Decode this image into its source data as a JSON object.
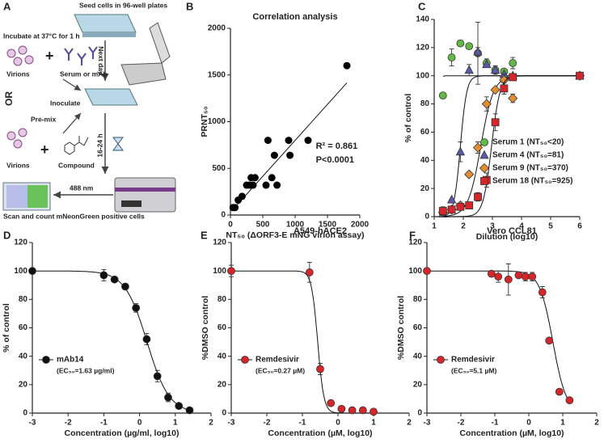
{
  "panel_a": {
    "label": "A",
    "texts": {
      "seed": "Seed cells in 96-well plates",
      "next_day": "Next day",
      "incubate": "Incubate at 37°C for 1 h",
      "virions_1": "Virions",
      "serum": "Serum or mAb",
      "or": "OR",
      "inoculate": "Inoculate",
      "premix": "Pre-mix",
      "virions_2": "Virions",
      "compound": "Compound",
      "hours": "16-24 h",
      "nm": "488 nm",
      "scan": "Scan and count mNeonGreen positive cells"
    }
  },
  "chart_data": [
    {
      "type": "scatter",
      "label": "B",
      "title": "Correlation analysis",
      "xlabel": "NT₅₀ (ΔORF3-E mNG virion assay)",
      "ylabel": "PRNT₅₀",
      "color": "#000000",
      "x": [
        40,
        70,
        120,
        180,
        250,
        300,
        320,
        350,
        380,
        550,
        580,
        640,
        680,
        720,
        900,
        920,
        1200,
        1800
      ],
      "values": [
        80,
        80,
        160,
        200,
        320,
        320,
        400,
        320,
        400,
        320,
        800,
        400,
        640,
        320,
        800,
        640,
        800,
        1600
      ],
      "fit": {
        "slope": 0.77,
        "intercept": 30
      },
      "annotations": [
        "R² = 0.861",
        "P<0.0001"
      ],
      "xlim": [
        0,
        2000
      ],
      "xticks": [
        0,
        500,
        1000,
        1500,
        2000
      ],
      "ylim": [
        0,
        2000
      ],
      "yticks": [
        0,
        500,
        1000,
        1500,
        2000
      ]
    },
    {
      "type": "dose_response",
      "label": "C",
      "xlabel": "Dilution (log10)",
      "ylabel": "% of control",
      "legend": "lower right",
      "x": [
        1.3,
        1.6,
        1.9,
        2.2,
        2.5,
        2.8,
        3.1,
        3.4,
        3.7,
        6
      ],
      "series": [
        {
          "name": "Serum 1 (NT₅₀<20)",
          "color": "#63b946",
          "marker": "circle",
          "values": [
            86,
            113,
            123,
            121,
            116,
            109,
            104,
            103,
            109,
            100
          ],
          "errors": [
            null,
            6,
            null,
            null,
            22,
            3,
            3,
            null,
            4,
            null
          ],
          "fit": {
            "bottom": 0,
            "top": 100,
            "x50": 1.0,
            "hill": -8
          }
        },
        {
          "name": "Serum 4 (NT₅₀=81)",
          "color": "#5a5aa8",
          "marker": "triangle",
          "values": [
            2,
            12,
            46,
            104,
            117,
            108,
            104,
            101,
            100,
            100
          ],
          "errors": [
            null,
            null,
            7,
            4,
            3,
            null,
            null,
            null,
            null,
            null
          ],
          "fit": {
            "bottom": 0,
            "top": 100,
            "x50": 1.9,
            "hill": -4
          }
        },
        {
          "name": "Serum 9 (NT₅₀=370)",
          "color": "#e58d31",
          "marker": "diamond",
          "values": [
            3,
            5,
            8,
            30,
            49,
            80,
            90,
            97,
            84,
            100
          ],
          "errors": [
            null,
            null,
            null,
            null,
            4,
            5,
            null,
            4,
            3,
            null
          ],
          "fit": {
            "bottom": 0,
            "top": 100,
            "x50": 2.6,
            "hill": -2
          }
        },
        {
          "name": "Serum 18 (NT₅₀=925)",
          "color": "#d7262b",
          "marker": "square",
          "values": [
            4,
            5,
            7,
            8,
            14,
            26,
            67,
            91,
            99,
            100
          ],
          "errors": [
            3,
            null,
            null,
            null,
            3,
            5,
            6,
            4,
            null,
            null
          ],
          "fit": {
            "bottom": 0,
            "top": 100,
            "x50": 2.97,
            "hill": -3
          }
        }
      ],
      "xlim": [
        1,
        6
      ],
      "xticks": [
        1,
        2,
        3,
        4,
        5,
        6
      ],
      "ylim": [
        0,
        140
      ],
      "yticks": [
        0,
        20,
        40,
        60,
        80,
        100,
        120,
        140
      ]
    },
    {
      "type": "dose_response",
      "label": "D",
      "xlabel": "Concentration (µg/ml, log10)",
      "ylabel": "% of control",
      "legend": "lower left",
      "x": [
        -3,
        -1,
        -0.7,
        -0.4,
        -0.1,
        0.2,
        0.5,
        0.8,
        1.1,
        1.4
      ],
      "series": [
        {
          "name": "mAb14",
          "note": "(EC₅₀=1.63 µg/ml)",
          "color": "#111111",
          "marker": "circle",
          "values": [
            100,
            97,
            94,
            89,
            74,
            52,
            26,
            11,
            5,
            2
          ],
          "errors": [
            null,
            4,
            null,
            null,
            3,
            4,
            4,
            3,
            null,
            null
          ],
          "fit": {
            "bottom": 0,
            "top": 100,
            "x50": 0.21,
            "hill": 1.4
          }
        }
      ],
      "xlim": [
        -3,
        2
      ],
      "xticks": [
        -3,
        -2,
        -1,
        0,
        1,
        2
      ],
      "ylim": [
        0,
        120
      ],
      "yticks": [
        0,
        20,
        40,
        60,
        80,
        100,
        120
      ]
    },
    {
      "type": "dose_response",
      "label": "E",
      "title": "A549-hACE2",
      "xlabel": "Concentration (µM, log10)",
      "ylabel": "%DMSO control",
      "legend": "lower left",
      "x": [
        -3,
        -0.8,
        -0.5,
        -0.2,
        0.1,
        0.4,
        0.7,
        1.0
      ],
      "series": [
        {
          "name": "Remdesivir",
          "note": "(EC₅₀=0.27 µM)",
          "color": "#d7262b",
          "marker": "circle",
          "values": [
            100,
            99,
            31,
            7,
            3,
            2,
            2,
            1
          ],
          "errors": [
            4,
            7,
            4,
            null,
            null,
            null,
            null,
            null
          ],
          "fit": {
            "bottom": 0,
            "top": 100,
            "x50": -0.57,
            "hill": 5
          }
        }
      ],
      "xlim": [
        -3,
        2
      ],
      "xticks": [
        -3,
        -2,
        -1,
        0,
        1,
        2
      ],
      "ylim": [
        0,
        120
      ],
      "yticks": [
        0,
        20,
        40,
        60,
        80,
        100,
        120
      ]
    },
    {
      "type": "dose_response",
      "label": "F",
      "title": "Vero CCL81",
      "xlabel": "Concentration (µM, log10)",
      "ylabel": "%DMSO control",
      "legend": "lower left",
      "x": [
        -3,
        -1.1,
        -0.9,
        -0.6,
        -0.3,
        -0.1,
        0.1,
        0.4,
        0.6,
        0.9,
        1.2
      ],
      "series": [
        {
          "name": "Remdesivir",
          "note": "(EC₅₀=5.1 µM)",
          "color": "#d7262b",
          "marker": "circle",
          "values": [
            100,
            98,
            96,
            94,
            97,
            96,
            96,
            85,
            51,
            15,
            9
          ],
          "errors": [
            null,
            null,
            4,
            11,
            null,
            3,
            3,
            4,
            null,
            null,
            null
          ],
          "fit": {
            "bottom": 0,
            "top": 100,
            "x50": 0.71,
            "hill": 2.2
          }
        }
      ],
      "xlim": [
        -3,
        2
      ],
      "xticks": [
        -3,
        -2,
        -1,
        0,
        1,
        2
      ],
      "ylim": [
        0,
        120
      ],
      "yticks": [
        0,
        20,
        40,
        60,
        80,
        100,
        120
      ]
    }
  ]
}
